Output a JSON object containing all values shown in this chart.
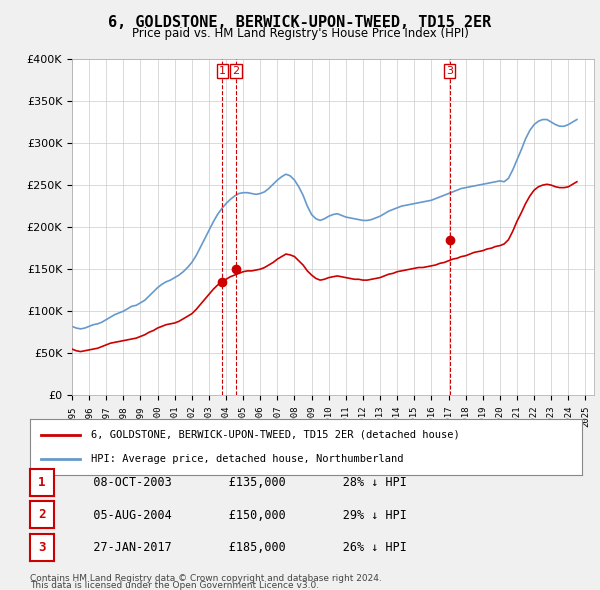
{
  "title": "6, GOLDSTONE, BERWICK-UPON-TWEED, TD15 2ER",
  "subtitle": "Price paid vs. HM Land Registry's House Price Index (HPI)",
  "ylabel_ticks": [
    "£0",
    "£50K",
    "£100K",
    "£150K",
    "£200K",
    "£250K",
    "£300K",
    "£350K",
    "£400K"
  ],
  "ylim": [
    0,
    400000
  ],
  "xlim": [
    1995,
    2025.5
  ],
  "background_color": "#f0f0f0",
  "plot_background": "#ffffff",
  "legend1": "6, GOLDSTONE, BERWICK-UPON-TWEED, TD15 2ER (detached house)",
  "legend2": "HPI: Average price, detached house, Northumberland",
  "footer1": "Contains HM Land Registry data © Crown copyright and database right 2024.",
  "footer2": "This data is licensed under the Open Government Licence v3.0.",
  "sales": [
    {
      "num": 1,
      "date": "08-OCT-2003",
      "price": 135000,
      "pct": "28% ↓ HPI",
      "year": 2003.78
    },
    {
      "num": 2,
      "date": "05-AUG-2004",
      "price": 150000,
      "pct": "29% ↓ HPI",
      "year": 2004.59
    },
    {
      "num": 3,
      "date": "27-JAN-2017",
      "price": 185000,
      "pct": "26% ↓ HPI",
      "year": 2017.07
    }
  ],
  "hpi_data": {
    "years": [
      1995.0,
      1995.25,
      1995.5,
      1995.75,
      1996.0,
      1996.25,
      1996.5,
      1996.75,
      1997.0,
      1997.25,
      1997.5,
      1997.75,
      1998.0,
      1998.25,
      1998.5,
      1998.75,
      1999.0,
      1999.25,
      1999.5,
      1999.75,
      2000.0,
      2000.25,
      2000.5,
      2000.75,
      2001.0,
      2001.25,
      2001.5,
      2001.75,
      2002.0,
      2002.25,
      2002.5,
      2002.75,
      2003.0,
      2003.25,
      2003.5,
      2003.75,
      2004.0,
      2004.25,
      2004.5,
      2004.75,
      2005.0,
      2005.25,
      2005.5,
      2005.75,
      2006.0,
      2006.25,
      2006.5,
      2006.75,
      2007.0,
      2007.25,
      2007.5,
      2007.75,
      2008.0,
      2008.25,
      2008.5,
      2008.75,
      2009.0,
      2009.25,
      2009.5,
      2009.75,
      2010.0,
      2010.25,
      2010.5,
      2010.75,
      2011.0,
      2011.25,
      2011.5,
      2011.75,
      2012.0,
      2012.25,
      2012.5,
      2012.75,
      2013.0,
      2013.25,
      2013.5,
      2013.75,
      2014.0,
      2014.25,
      2014.5,
      2014.75,
      2015.0,
      2015.25,
      2015.5,
      2015.75,
      2016.0,
      2016.25,
      2016.5,
      2016.75,
      2017.0,
      2017.25,
      2017.5,
      2017.75,
      2018.0,
      2018.25,
      2018.5,
      2018.75,
      2019.0,
      2019.25,
      2019.5,
      2019.75,
      2020.0,
      2020.25,
      2020.5,
      2020.75,
      2021.0,
      2021.25,
      2021.5,
      2021.75,
      2022.0,
      2022.25,
      2022.5,
      2022.75,
      2023.0,
      2023.25,
      2023.5,
      2023.75,
      2024.0,
      2024.25,
      2024.5
    ],
    "values": [
      82000,
      80000,
      79000,
      80000,
      82000,
      84000,
      85000,
      87000,
      90000,
      93000,
      96000,
      98000,
      100000,
      103000,
      106000,
      107000,
      110000,
      113000,
      118000,
      123000,
      128000,
      132000,
      135000,
      137000,
      140000,
      143000,
      147000,
      152000,
      158000,
      166000,
      176000,
      186000,
      196000,
      206000,
      215000,
      222000,
      228000,
      233000,
      237000,
      240000,
      241000,
      241000,
      240000,
      239000,
      240000,
      242000,
      246000,
      251000,
      256000,
      260000,
      263000,
      261000,
      256000,
      248000,
      238000,
      225000,
      215000,
      210000,
      208000,
      210000,
      213000,
      215000,
      216000,
      214000,
      212000,
      211000,
      210000,
      209000,
      208000,
      208000,
      209000,
      211000,
      213000,
      216000,
      219000,
      221000,
      223000,
      225000,
      226000,
      227000,
      228000,
      229000,
      230000,
      231000,
      232000,
      234000,
      236000,
      238000,
      240000,
      242000,
      244000,
      246000,
      247000,
      248000,
      249000,
      250000,
      251000,
      252000,
      253000,
      254000,
      255000,
      254000,
      258000,
      268000,
      280000,
      292000,
      305000,
      315000,
      322000,
      326000,
      328000,
      328000,
      325000,
      322000,
      320000,
      320000,
      322000,
      325000,
      328000
    ]
  },
  "price_data": {
    "years": [
      1995.0,
      1995.25,
      1995.5,
      1995.75,
      1996.0,
      1996.25,
      1996.5,
      1996.75,
      1997.0,
      1997.25,
      1997.5,
      1997.75,
      1998.0,
      1998.25,
      1998.5,
      1998.75,
      1999.0,
      1999.25,
      1999.5,
      1999.75,
      2000.0,
      2000.25,
      2000.5,
      2000.75,
      2001.0,
      2001.25,
      2001.5,
      2001.75,
      2002.0,
      2002.25,
      2002.5,
      2002.75,
      2003.0,
      2003.25,
      2003.5,
      2003.75,
      2004.0,
      2004.25,
      2004.5,
      2004.75,
      2005.0,
      2005.25,
      2005.5,
      2005.75,
      2006.0,
      2006.25,
      2006.5,
      2006.75,
      2007.0,
      2007.25,
      2007.5,
      2007.75,
      2008.0,
      2008.25,
      2008.5,
      2008.75,
      2009.0,
      2009.25,
      2009.5,
      2009.75,
      2010.0,
      2010.25,
      2010.5,
      2010.75,
      2011.0,
      2011.25,
      2011.5,
      2011.75,
      2012.0,
      2012.25,
      2012.5,
      2012.75,
      2013.0,
      2013.25,
      2013.5,
      2013.75,
      2014.0,
      2014.25,
      2014.5,
      2014.75,
      2015.0,
      2015.25,
      2015.5,
      2015.75,
      2016.0,
      2016.25,
      2016.5,
      2016.75,
      2017.0,
      2017.25,
      2017.5,
      2017.75,
      2018.0,
      2018.25,
      2018.5,
      2018.75,
      2019.0,
      2019.25,
      2019.5,
      2019.75,
      2020.0,
      2020.25,
      2020.5,
      2020.75,
      2021.0,
      2021.25,
      2021.5,
      2021.75,
      2022.0,
      2022.25,
      2022.5,
      2022.75,
      2023.0,
      2023.25,
      2023.5,
      2023.75,
      2024.0,
      2024.25,
      2024.5
    ],
    "values": [
      55000,
      53000,
      52000,
      53000,
      54000,
      55000,
      56000,
      58000,
      60000,
      62000,
      63000,
      64000,
      65000,
      66000,
      67000,
      68000,
      70000,
      72000,
      75000,
      77000,
      80000,
      82000,
      84000,
      85000,
      86000,
      88000,
      91000,
      94000,
      97000,
      102000,
      108000,
      114000,
      120000,
      126000,
      131000,
      135000,
      138000,
      141000,
      143000,
      145000,
      147000,
      148000,
      148000,
      149000,
      150000,
      152000,
      155000,
      158000,
      162000,
      165000,
      168000,
      167000,
      165000,
      160000,
      155000,
      148000,
      143000,
      139000,
      137000,
      138000,
      140000,
      141000,
      142000,
      141000,
      140000,
      139000,
      138000,
      138000,
      137000,
      137000,
      138000,
      139000,
      140000,
      142000,
      144000,
      145000,
      147000,
      148000,
      149000,
      150000,
      151000,
      152000,
      152000,
      153000,
      154000,
      155000,
      157000,
      158000,
      160000,
      162000,
      163000,
      165000,
      166000,
      168000,
      170000,
      171000,
      172000,
      174000,
      175000,
      177000,
      178000,
      180000,
      185000,
      195000,
      207000,
      217000,
      228000,
      237000,
      244000,
      248000,
      250000,
      251000,
      250000,
      248000,
      247000,
      247000,
      248000,
      251000,
      254000
    ]
  },
  "sale_marker_color": "#cc0000",
  "hpi_line_color": "#6699cc",
  "price_line_color": "#cc0000",
  "grid_color": "#cccccc",
  "annotation_line_color": "#cc0000"
}
